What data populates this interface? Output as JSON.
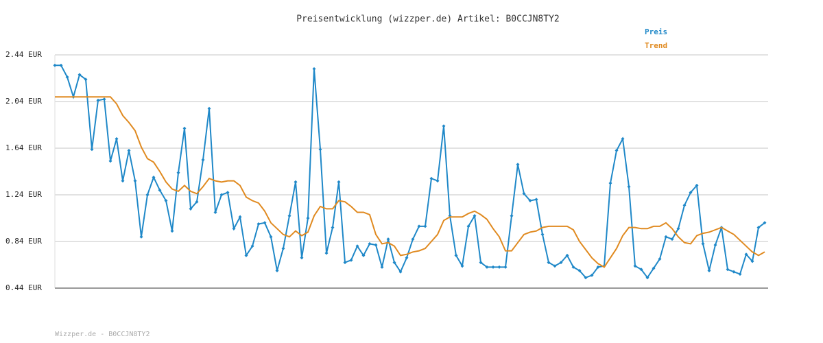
{
  "chart_data": {
    "type": "line",
    "title": "Preisentwicklung (wizzper.de) Artikel: B0CCJN8TY2",
    "footer": "Wizzper.de - B0CCJN8TY2",
    "ylim": [
      0.44,
      2.44
    ],
    "yticks": [
      {
        "value": 0.44,
        "label": "0.44 EUR"
      },
      {
        "value": 0.84,
        "label": "0.84 EUR"
      },
      {
        "value": 1.24,
        "label": "1.24 EUR"
      },
      {
        "value": 1.64,
        "label": "1.64 EUR"
      },
      {
        "value": 2.04,
        "label": "2.04 EUR"
      },
      {
        "value": 2.44,
        "label": "2.44 EUR"
      }
    ],
    "grid": true,
    "legend": "top-right",
    "series": [
      {
        "name": "Preis",
        "color": "#1f88c8",
        "markers": true,
        "values": [
          2.35,
          2.35,
          2.25,
          2.08,
          2.27,
          2.23,
          1.63,
          2.05,
          2.06,
          1.53,
          1.72,
          1.36,
          1.62,
          1.36,
          0.88,
          1.24,
          1.39,
          1.28,
          1.19,
          0.93,
          1.43,
          1.81,
          1.12,
          1.18,
          1.54,
          1.98,
          1.09,
          1.24,
          1.26,
          0.95,
          1.05,
          0.72,
          0.8,
          0.99,
          1.0,
          0.88,
          0.59,
          0.78,
          1.06,
          1.35,
          0.7,
          1.04,
          2.32,
          1.63,
          0.74,
          0.96,
          1.35,
          0.66,
          0.68,
          0.8,
          0.72,
          0.82,
          0.81,
          0.62,
          0.86,
          0.66,
          0.58,
          0.7,
          0.86,
          0.97,
          0.97,
          1.38,
          1.36,
          1.83,
          1.06,
          0.72,
          0.63,
          0.97,
          1.06,
          0.66,
          0.62,
          0.62,
          0.62,
          0.62,
          1.06,
          1.5,
          1.25,
          1.19,
          1.2,
          0.9,
          0.66,
          0.63,
          0.66,
          0.72,
          0.62,
          0.59,
          0.53,
          0.55,
          0.62,
          0.63,
          1.34,
          1.62,
          1.72,
          1.31,
          0.63,
          0.6,
          0.53,
          0.61,
          0.69,
          0.88,
          0.86,
          0.95,
          1.15,
          1.26,
          1.32,
          0.82,
          0.59,
          0.81,
          0.96,
          0.6,
          0.58,
          0.56,
          0.73,
          0.67,
          0.96,
          1.0
        ]
      },
      {
        "name": "Trend",
        "color": "#e08a20",
        "markers": false,
        "values": [
          2.08,
          2.08,
          2.08,
          2.08,
          2.08,
          2.08,
          2.08,
          2.08,
          2.08,
          2.08,
          2.02,
          1.92,
          1.86,
          1.79,
          1.65,
          1.55,
          1.52,
          1.44,
          1.35,
          1.29,
          1.27,
          1.32,
          1.27,
          1.25,
          1.31,
          1.38,
          1.36,
          1.35,
          1.36,
          1.36,
          1.32,
          1.22,
          1.19,
          1.17,
          1.1,
          1.0,
          0.95,
          0.9,
          0.88,
          0.93,
          0.89,
          0.92,
          1.06,
          1.14,
          1.12,
          1.12,
          1.19,
          1.18,
          1.14,
          1.09,
          1.09,
          1.07,
          0.9,
          0.82,
          0.83,
          0.8,
          0.72,
          0.73,
          0.75,
          0.76,
          0.78,
          0.84,
          0.9,
          1.02,
          1.05,
          1.05,
          1.05,
          1.08,
          1.1,
          1.07,
          1.03,
          0.95,
          0.88,
          0.76,
          0.76,
          0.83,
          0.9,
          0.92,
          0.93,
          0.96,
          0.97,
          0.97,
          0.97,
          0.97,
          0.94,
          0.84,
          0.77,
          0.7,
          0.65,
          0.62,
          0.7,
          0.78,
          0.89,
          0.96,
          0.96,
          0.95,
          0.95,
          0.97,
          0.97,
          1.0,
          0.95,
          0.88,
          0.83,
          0.82,
          0.89,
          0.91,
          0.92,
          0.94,
          0.96,
          0.93,
          0.9,
          0.85,
          0.8,
          0.75,
          0.72,
          0.75
        ]
      }
    ]
  }
}
